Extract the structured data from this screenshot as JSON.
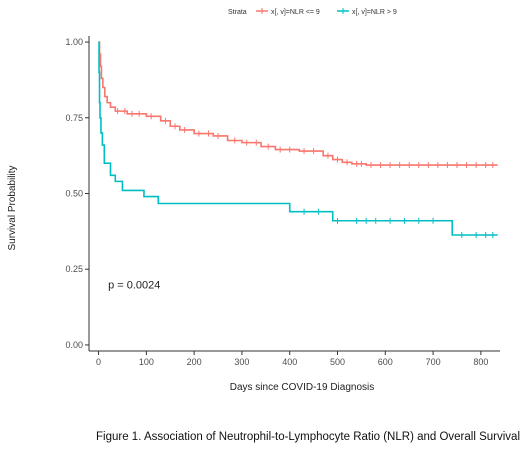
{
  "chart_data": {
    "type": "line",
    "subtype": "kaplan-meier step",
    "xlabel": "Days since COVID-19 Diagnosis",
    "ylabel": "Survival Probability",
    "xlim": [
      -20,
      840
    ],
    "ylim": [
      -0.02,
      1.02
    ],
    "x_ticks": [
      0,
      100,
      200,
      300,
      400,
      500,
      600,
      700,
      800
    ],
    "y_ticks": [
      0.0,
      0.25,
      0.5,
      0.75,
      1.0
    ],
    "y_tick_labels": [
      "0.00",
      "0.25",
      "0.50",
      "0.75",
      "1.00"
    ],
    "grid": false,
    "legend": {
      "title": "Strata",
      "position": "top",
      "entries": [
        {
          "label": "x[, v]=NLR <= 9",
          "color": "#F8766D"
        },
        {
          "label": "x[, v]=NLR > 9",
          "color": "#00BFC4"
        }
      ]
    },
    "annotation": {
      "text": "p = 0.0024",
      "x": 20,
      "y": 0.2
    },
    "series": [
      {
        "name": "x[, v]=NLR <= 9",
        "color": "#F8766D",
        "steps": [
          [
            0,
            1.0
          ],
          [
            2,
            0.96
          ],
          [
            4,
            0.92
          ],
          [
            6,
            0.88
          ],
          [
            9,
            0.85
          ],
          [
            13,
            0.82
          ],
          [
            18,
            0.8
          ],
          [
            25,
            0.785
          ],
          [
            35,
            0.772
          ],
          [
            60,
            0.763
          ],
          [
            100,
            0.755
          ],
          [
            130,
            0.74
          ],
          [
            150,
            0.722
          ],
          [
            170,
            0.71
          ],
          [
            200,
            0.698
          ],
          [
            240,
            0.69
          ],
          [
            270,
            0.675
          ],
          [
            300,
            0.668
          ],
          [
            340,
            0.655
          ],
          [
            370,
            0.645
          ],
          [
            420,
            0.64
          ],
          [
            470,
            0.625
          ],
          [
            490,
            0.612
          ],
          [
            510,
            0.603
          ],
          [
            530,
            0.598
          ],
          [
            560,
            0.594
          ],
          [
            835,
            0.594
          ]
        ],
        "censor_x": [
          40,
          55,
          70,
          85,
          110,
          140,
          160,
          180,
          210,
          230,
          250,
          285,
          310,
          330,
          355,
          380,
          400,
          430,
          450,
          480,
          500,
          520,
          540,
          550,
          570,
          590,
          610,
          630,
          650,
          670,
          690,
          710,
          730,
          750,
          770,
          790,
          810,
          825
        ]
      },
      {
        "name": "x[, v]=NLR > 9",
        "color": "#00BFC4",
        "steps": [
          [
            0,
            1.0
          ],
          [
            1,
            0.9
          ],
          [
            2,
            0.8
          ],
          [
            3,
            0.75
          ],
          [
            5,
            0.7
          ],
          [
            8,
            0.66
          ],
          [
            12,
            0.6
          ],
          [
            25,
            0.56
          ],
          [
            35,
            0.54
          ],
          [
            50,
            0.51
          ],
          [
            95,
            0.49
          ],
          [
            125,
            0.467
          ],
          [
            400,
            0.44
          ],
          [
            490,
            0.41
          ],
          [
            740,
            0.363
          ],
          [
            835,
            0.363
          ]
        ],
        "censor_x": [
          430,
          460,
          500,
          540,
          560,
          580,
          610,
          640,
          670,
          700,
          760,
          790,
          810,
          825
        ]
      }
    ]
  },
  "caption": "Figure 1. Association of Neutrophil-to-Lymphocyte Ratio (NLR) and Overall Survival"
}
